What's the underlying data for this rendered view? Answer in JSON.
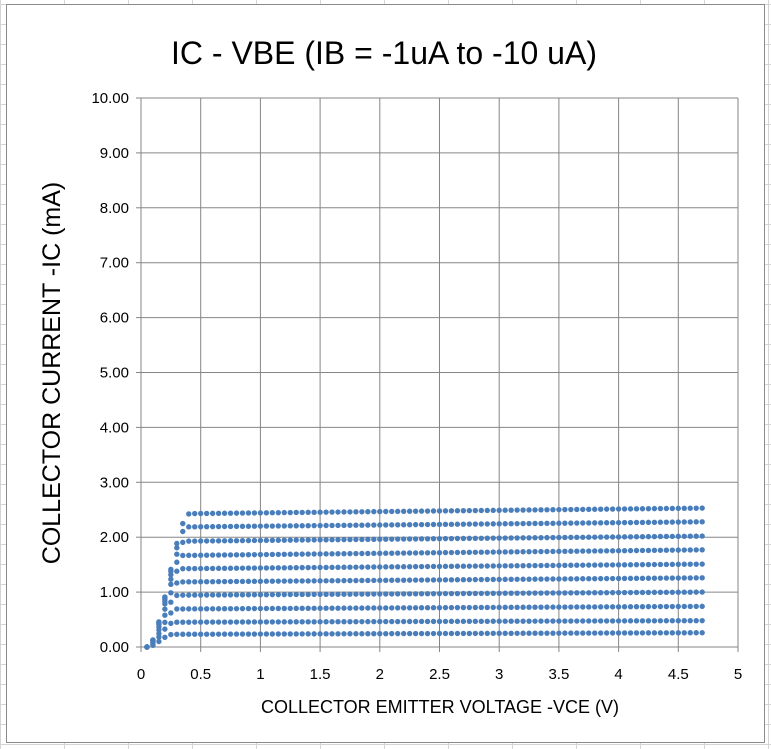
{
  "chart_data": {
    "type": "scatter",
    "title": "IC - VBE (IB = -1uA to -10 uA)",
    "xlabel": "COLLECTOR EMITTER VOLTAGE   -VCE   (V)",
    "ylabel": "COLLECTOR CURRENT   -IC   (mA)",
    "xlim": [
      0,
      5
    ],
    "ylim": [
      0,
      10
    ],
    "x_ticks": [
      "0",
      "0.5",
      "1",
      "1.5",
      "2",
      "2.5",
      "3",
      "3.5",
      "4",
      "4.5",
      "5"
    ],
    "y_ticks": [
      "0.00",
      "1.00",
      "2.00",
      "3.00",
      "4.00",
      "5.00",
      "6.00",
      "7.00",
      "8.00",
      "9.00",
      "10.00"
    ],
    "grid": true,
    "marker_color": "#4a7ebb",
    "x_start": 0.05,
    "x_end": 4.7,
    "x_step": 0.05,
    "series": [
      {
        "knee": 0.27,
        "sat": [
          0.23,
          0.26
        ]
      },
      {
        "knee": 0.28,
        "sat": [
          0.45,
          0.48
        ]
      },
      {
        "knee": 0.3,
        "sat": [
          0.69,
          0.74
        ]
      },
      {
        "knee": 0.31,
        "sat": [
          0.94,
          1.0
        ]
      },
      {
        "knee": 0.32,
        "sat": [
          1.18,
          1.26
        ]
      },
      {
        "knee": 0.33,
        "sat": [
          1.42,
          1.51
        ]
      },
      {
        "knee": 0.35,
        "sat": [
          1.66,
          1.77
        ]
      },
      {
        "knee": 0.37,
        "sat": [
          1.92,
          2.02
        ]
      },
      {
        "knee": 0.39,
        "sat": [
          2.18,
          2.28
        ]
      },
      {
        "knee": 0.41,
        "sat": [
          2.42,
          2.53
        ]
      }
    ]
  }
}
